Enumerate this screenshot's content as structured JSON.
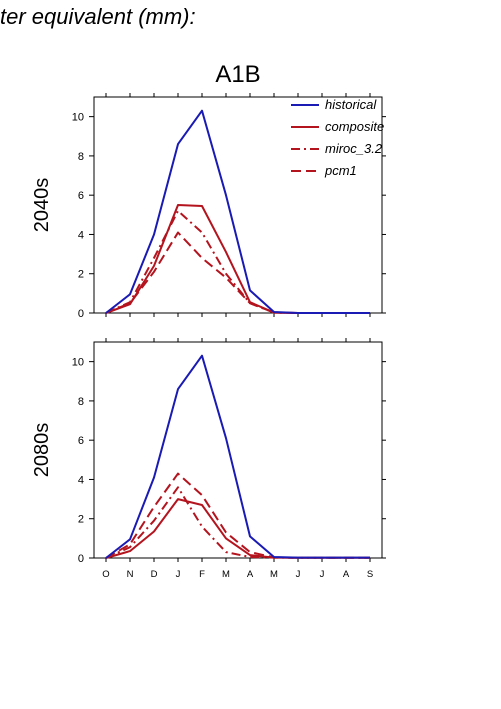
{
  "header": {
    "text": "ter equivalent (mm):"
  },
  "chart_data": {
    "type": "line",
    "title": "A1B",
    "categories": [
      "O",
      "N",
      "D",
      "J",
      "F",
      "M",
      "A",
      "M",
      "J",
      "J",
      "A",
      "S"
    ],
    "ylim": [
      0,
      11
    ],
    "yticks": [
      0,
      2,
      4,
      6,
      8,
      10
    ],
    "colors": {
      "historical": "#1a1ab4",
      "scenario": "#b4141e"
    },
    "legend": {
      "position": "top-right",
      "entries": [
        {
          "key": "historical",
          "label": "historical",
          "style": "solid",
          "color": "#1a1ab4"
        },
        {
          "key": "composite",
          "label": "composite",
          "style": "solid",
          "color": "#b4141e"
        },
        {
          "key": "miroc",
          "label": "miroc_3.2",
          "style": "dashdot",
          "color": "#b4141e"
        },
        {
          "key": "pcm1",
          "label": "pcm1",
          "style": "dashed",
          "color": "#b4141e"
        }
      ]
    },
    "panels": [
      {
        "label": "2040s",
        "series": [
          {
            "key": "historical",
            "values": [
              0,
              0.95,
              4.0,
              8.6,
              10.3,
              6.0,
              1.15,
              0.05,
              0,
              0,
              0,
              0
            ]
          },
          {
            "key": "composite",
            "values": [
              0,
              0.45,
              2.4,
              5.5,
              5.45,
              3.1,
              0.55,
              0.02,
              0,
              0,
              0,
              0
            ]
          },
          {
            "key": "miroc",
            "values": [
              0,
              0.55,
              2.8,
              5.2,
              4.1,
              2.0,
              0.5,
              0.02,
              0,
              0,
              0,
              0
            ]
          },
          {
            "key": "pcm1",
            "values": [
              0,
              0.5,
              2.1,
              4.1,
              2.8,
              1.8,
              0.5,
              0.02,
              0,
              0,
              0,
              0
            ]
          }
        ]
      },
      {
        "label": "2080s",
        "series": [
          {
            "key": "historical",
            "values": [
              0,
              0.95,
              4.1,
              8.6,
              10.3,
              6.1,
              1.1,
              0.05,
              0.02,
              0.02,
              0.02,
              0.02
            ]
          },
          {
            "key": "composite",
            "values": [
              0,
              0.35,
              1.35,
              3.0,
              2.7,
              1.0,
              0.15,
              0.02,
              0.01,
              0.01,
              0.01,
              0.01
            ]
          },
          {
            "key": "miroc",
            "values": [
              0,
              0.55,
              1.9,
              3.6,
              1.6,
              0.3,
              0.05,
              0.02,
              0.01,
              0.01,
              0.01,
              0.01
            ]
          },
          {
            "key": "pcm1",
            "values": [
              0,
              0.7,
              2.6,
              4.3,
              3.2,
              1.3,
              0.3,
              0.03,
              0.01,
              0.01,
              0.01,
              0.01
            ]
          }
        ]
      }
    ]
  }
}
